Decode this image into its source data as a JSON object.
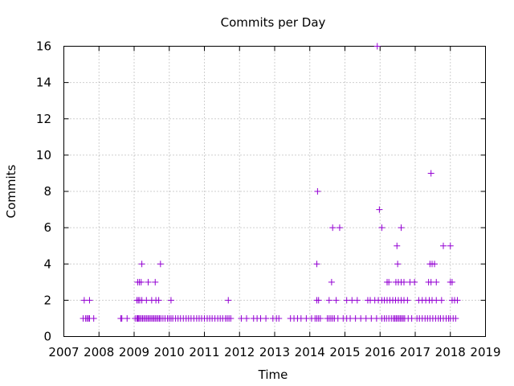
{
  "chart_data": {
    "type": "scatter",
    "title": "Commits per Day",
    "xlabel": "Time",
    "ylabel": "Commits",
    "xlim": [
      2007,
      2019
    ],
    "ylim": [
      0,
      16
    ],
    "x_ticks": [
      "2007",
      "2008",
      "2009",
      "2010",
      "2011",
      "2012",
      "2013",
      "2014",
      "2015",
      "2016",
      "2017",
      "2018",
      "2019"
    ],
    "y_ticks": [
      "0",
      "2",
      "4",
      "6",
      "8",
      "10",
      "12",
      "14",
      "16"
    ],
    "grid": true,
    "marker": "plus",
    "color": "#9400d3",
    "series": [
      {
        "points": [
          [
            2007.55,
            1
          ],
          [
            2007.62,
            1
          ],
          [
            2007.66,
            1
          ],
          [
            2007.7,
            1
          ],
          [
            2007.73,
            1
          ],
          [
            2007.85,
            1
          ],
          [
            2007.58,
            2
          ],
          [
            2007.73,
            2
          ],
          [
            2008.62,
            1
          ],
          [
            2008.65,
            1
          ],
          [
            2008.8,
            1
          ],
          [
            2009.03,
            1
          ],
          [
            2009.08,
            1
          ],
          [
            2009.1,
            1
          ],
          [
            2009.13,
            1
          ],
          [
            2009.16,
            1
          ],
          [
            2009.2,
            1
          ],
          [
            2009.24,
            1
          ],
          [
            2009.28,
            1
          ],
          [
            2009.32,
            1
          ],
          [
            2009.36,
            1
          ],
          [
            2009.4,
            1
          ],
          [
            2009.44,
            1
          ],
          [
            2009.48,
            1
          ],
          [
            2009.52,
            1
          ],
          [
            2009.56,
            1
          ],
          [
            2009.6,
            1
          ],
          [
            2009.64,
            1
          ],
          [
            2009.68,
            1
          ],
          [
            2009.72,
            1
          ],
          [
            2009.76,
            1
          ],
          [
            2009.82,
            1
          ],
          [
            2009.88,
            1
          ],
          [
            2009.95,
            1
          ],
          [
            2009.08,
            2
          ],
          [
            2009.12,
            2
          ],
          [
            2009.16,
            2
          ],
          [
            2009.22,
            2
          ],
          [
            2009.35,
            2
          ],
          [
            2009.5,
            2
          ],
          [
            2009.62,
            2
          ],
          [
            2009.7,
            2
          ],
          [
            2009.1,
            3
          ],
          [
            2009.15,
            3
          ],
          [
            2009.2,
            3
          ],
          [
            2009.4,
            3
          ],
          [
            2009.6,
            3
          ],
          [
            2009.22,
            4
          ],
          [
            2009.75,
            4
          ],
          [
            2010.0,
            1
          ],
          [
            2010.05,
            1
          ],
          [
            2010.1,
            1
          ],
          [
            2010.18,
            1
          ],
          [
            2010.25,
            1
          ],
          [
            2010.32,
            1
          ],
          [
            2010.4,
            1
          ],
          [
            2010.48,
            1
          ],
          [
            2010.55,
            1
          ],
          [
            2010.62,
            1
          ],
          [
            2010.7,
            1
          ],
          [
            2010.78,
            1
          ],
          [
            2010.85,
            1
          ],
          [
            2010.92,
            1
          ],
          [
            2010.05,
            2
          ],
          [
            2011.0,
            1
          ],
          [
            2011.08,
            1
          ],
          [
            2011.15,
            1
          ],
          [
            2011.22,
            1
          ],
          [
            2011.3,
            1
          ],
          [
            2011.38,
            1
          ],
          [
            2011.45,
            1
          ],
          [
            2011.52,
            1
          ],
          [
            2011.6,
            1
          ],
          [
            2011.65,
            1
          ],
          [
            2011.7,
            1
          ],
          [
            2011.75,
            1
          ],
          [
            2011.68,
            2
          ],
          [
            2012.05,
            1
          ],
          [
            2012.2,
            1
          ],
          [
            2012.4,
            1
          ],
          [
            2012.5,
            1
          ],
          [
            2012.6,
            1
          ],
          [
            2012.75,
            1
          ],
          [
            2012.95,
            1
          ],
          [
            2013.05,
            1
          ],
          [
            2013.12,
            1
          ],
          [
            2013.45,
            1
          ],
          [
            2013.55,
            1
          ],
          [
            2013.65,
            1
          ],
          [
            2013.75,
            1
          ],
          [
            2013.9,
            1
          ],
          [
            2014.05,
            1
          ],
          [
            2014.15,
            1
          ],
          [
            2014.2,
            1
          ],
          [
            2014.25,
            1
          ],
          [
            2014.3,
            1
          ],
          [
            2014.2,
            2
          ],
          [
            2014.25,
            2
          ],
          [
            2014.2,
            4
          ],
          [
            2014.22,
            8
          ],
          [
            2014.5,
            1
          ],
          [
            2014.55,
            1
          ],
          [
            2014.6,
            1
          ],
          [
            2014.65,
            1
          ],
          [
            2014.7,
            1
          ],
          [
            2014.8,
            1
          ],
          [
            2014.95,
            1
          ],
          [
            2014.55,
            2
          ],
          [
            2014.75,
            2
          ],
          [
            2014.62,
            3
          ],
          [
            2014.65,
            6
          ],
          [
            2014.85,
            6
          ],
          [
            2015.05,
            1
          ],
          [
            2015.15,
            1
          ],
          [
            2015.3,
            1
          ],
          [
            2015.45,
            1
          ],
          [
            2015.6,
            1
          ],
          [
            2015.75,
            1
          ],
          [
            2015.9,
            1
          ],
          [
            2015.05,
            2
          ],
          [
            2015.2,
            2
          ],
          [
            2015.35,
            2
          ],
          [
            2015.65,
            2
          ],
          [
            2015.72,
            2
          ],
          [
            2015.85,
            2
          ],
          [
            2015.95,
            2
          ],
          [
            2015.92,
            16
          ],
          [
            2015.98,
            7
          ],
          [
            2016.05,
            6
          ],
          [
            2016.05,
            1
          ],
          [
            2016.12,
            1
          ],
          [
            2016.18,
            1
          ],
          [
            2016.25,
            1
          ],
          [
            2016.32,
            1
          ],
          [
            2016.38,
            1
          ],
          [
            2016.42,
            1
          ],
          [
            2016.46,
            1
          ],
          [
            2016.5,
            1
          ],
          [
            2016.54,
            1
          ],
          [
            2016.58,
            1
          ],
          [
            2016.62,
            1
          ],
          [
            2016.66,
            1
          ],
          [
            2016.7,
            1
          ],
          [
            2016.8,
            1
          ],
          [
            2016.9,
            1
          ],
          [
            2016.05,
            2
          ],
          [
            2016.12,
            2
          ],
          [
            2016.2,
            2
          ],
          [
            2016.28,
            2
          ],
          [
            2016.36,
            2
          ],
          [
            2016.44,
            2
          ],
          [
            2016.52,
            2
          ],
          [
            2016.6,
            2
          ],
          [
            2016.68,
            2
          ],
          [
            2016.78,
            2
          ],
          [
            2016.2,
            3
          ],
          [
            2016.25,
            3
          ],
          [
            2016.45,
            3
          ],
          [
            2016.52,
            3
          ],
          [
            2016.6,
            3
          ],
          [
            2016.68,
            3
          ],
          [
            2016.85,
            3
          ],
          [
            2016.98,
            3
          ],
          [
            2016.5,
            4
          ],
          [
            2016.48,
            5
          ],
          [
            2016.6,
            6
          ],
          [
            2017.05,
            1
          ],
          [
            2017.12,
            1
          ],
          [
            2017.2,
            1
          ],
          [
            2017.28,
            1
          ],
          [
            2017.35,
            1
          ],
          [
            2017.42,
            1
          ],
          [
            2017.5,
            1
          ],
          [
            2017.58,
            1
          ],
          [
            2017.66,
            1
          ],
          [
            2017.72,
            1
          ],
          [
            2017.8,
            1
          ],
          [
            2017.88,
            1
          ],
          [
            2017.95,
            1
          ],
          [
            2017.1,
            2
          ],
          [
            2017.2,
            2
          ],
          [
            2017.3,
            2
          ],
          [
            2017.4,
            2
          ],
          [
            2017.48,
            2
          ],
          [
            2017.6,
            2
          ],
          [
            2017.75,
            2
          ],
          [
            2017.38,
            3
          ],
          [
            2017.45,
            3
          ],
          [
            2017.6,
            3
          ],
          [
            2017.42,
            4
          ],
          [
            2017.48,
            4
          ],
          [
            2017.55,
            4
          ],
          [
            2017.45,
            9
          ],
          [
            2017.8,
            5
          ],
          [
            2018.0,
            1
          ],
          [
            2018.08,
            1
          ],
          [
            2018.15,
            1
          ],
          [
            2018.05,
            2
          ],
          [
            2018.12,
            2
          ],
          [
            2018.2,
            2
          ],
          [
            2018.0,
            3
          ],
          [
            2018.05,
            3
          ],
          [
            2018.0,
            5
          ]
        ]
      }
    ]
  }
}
